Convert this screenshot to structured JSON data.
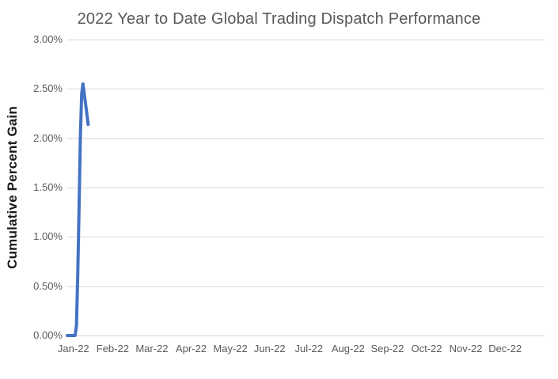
{
  "title": "2022 Year to Date Global Trading Dispatch Performance",
  "y_axis": {
    "label": "Cumulative Percent Gain",
    "ticks": [
      "3.00%",
      "2.50%",
      "2.00%",
      "1.50%",
      "1.00%",
      "0.50%",
      "0.00%"
    ]
  },
  "x_axis": {
    "ticks": [
      "Jan-22",
      "Feb-22",
      "Mar-22",
      "Apr-22",
      "May-22",
      "Jun-22",
      "Jul-22",
      "Aug-22",
      "Sep-22",
      "Oct-22",
      "Nov-22",
      "Dec-22"
    ]
  },
  "colors": {
    "line": "#4472C4",
    "gridline": "#d9d9d9",
    "title_text": "#595959",
    "tick_text": "#595959",
    "axis_title_text": "#1a1a1a",
    "background": "#ffffff"
  },
  "chart_data": {
    "type": "line",
    "title": "2022 Year to Date Global Trading Dispatch Performance",
    "xlabel": "",
    "ylabel": "Cumulative Percent Gain",
    "ylim": [
      0,
      3.0
    ],
    "y_tick_step_pct": 0.5,
    "x_axis_span": "full year 2022 (Jan-22 through Dec-22), data present only for early January",
    "x_unit": "day_of_year_2022",
    "grid": "horizontal",
    "legend": "none",
    "series": [
      {
        "name": "Cumulative Percent Gain",
        "color": "#4472C4",
        "peak_pct": 2.55,
        "final_pct": 2.14,
        "points": [
          {
            "day": 1,
            "pct": 0.0
          },
          {
            "day": 7,
            "pct": 0.0
          },
          {
            "day": 8,
            "pct": 0.1
          },
          {
            "day": 9,
            "pct": 0.6
          },
          {
            "day": 10,
            "pct": 1.3
          },
          {
            "day": 11,
            "pct": 2.0
          },
          {
            "day": 12,
            "pct": 2.45
          },
          {
            "day": 13,
            "pct": 2.55
          },
          {
            "day": 15,
            "pct": 2.35
          },
          {
            "day": 17,
            "pct": 2.14
          }
        ]
      }
    ]
  }
}
